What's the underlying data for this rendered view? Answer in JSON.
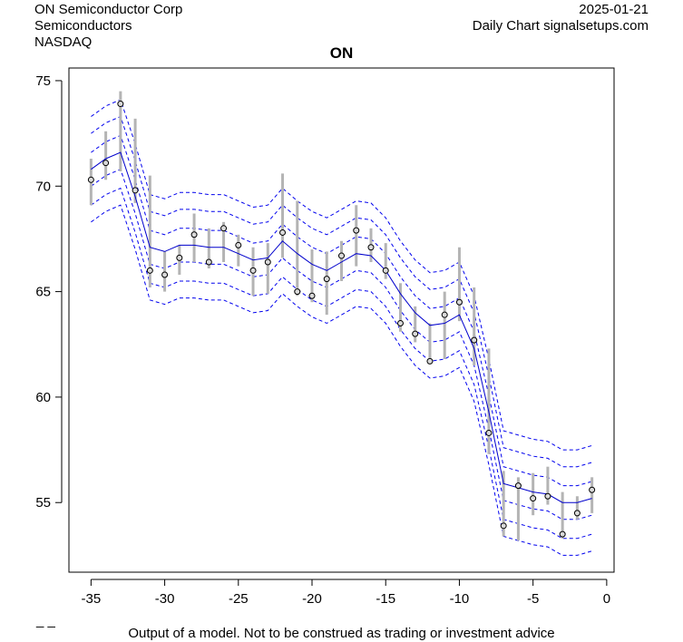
{
  "header": {
    "company": "ON Semiconductor Corp",
    "sector": "Semiconductors",
    "exchange": "NASDAQ",
    "date": "2025-01-21",
    "source": "Daily Chart signalsetups.com"
  },
  "footer": {
    "disclaimer": "Output of a model. Not to be construed as trading or investment advice",
    "marker": "_ _"
  },
  "colors": {
    "bar": "#b4b4b4",
    "model": "#0000cc",
    "band": "#0000ee"
  },
  "chart_data": {
    "type": "line",
    "title": "ON",
    "xlim": [
      -36.5,
      0.5
    ],
    "ylim": [
      51.7,
      75.6
    ],
    "x_ticks": [
      -35,
      -30,
      -25,
      -20,
      -15,
      -10,
      -5,
      0
    ],
    "y_ticks": [
      55,
      60,
      65,
      70,
      75
    ],
    "x": [
      -35,
      -34,
      -33,
      -32,
      -31,
      -30,
      -29,
      -28,
      -27,
      -26,
      -25,
      -24,
      -23,
      -22,
      -21,
      -20,
      -19,
      -18,
      -17,
      -16,
      -15,
      -14,
      -13,
      -12,
      -11,
      -10,
      -9,
      -8,
      -7,
      -6,
      -5,
      -4,
      -3,
      -2,
      -1
    ],
    "close": [
      70.3,
      71.1,
      73.9,
      69.8,
      66.0,
      65.8,
      66.6,
      67.7,
      66.4,
      68.0,
      67.2,
      66.0,
      66.4,
      67.8,
      65.0,
      64.8,
      65.6,
      66.7,
      67.9,
      67.1,
      66.0,
      63.5,
      63.0,
      61.7,
      63.9,
      64.5,
      62.7,
      58.3,
      53.9,
      55.8,
      55.2,
      55.3,
      53.5,
      54.5,
      55.6
    ],
    "high": [
      71.3,
      72.6,
      74.5,
      73.2,
      70.5,
      66.9,
      67.2,
      68.7,
      68.0,
      68.3,
      67.7,
      67.1,
      67.3,
      70.6,
      69.3,
      67.0,
      66.9,
      67.4,
      69.1,
      68.0,
      67.3,
      65.4,
      64.3,
      63.5,
      65.0,
      67.1,
      65.2,
      62.3,
      56.5,
      56.2,
      56.4,
      56.7,
      55.5,
      55.3,
      56.2
    ],
    "low": [
      69.1,
      70.3,
      70.7,
      69.2,
      65.2,
      65.0,
      65.8,
      66.4,
      66.1,
      66.4,
      66.2,
      64.8,
      64.9,
      66.6,
      64.8,
      64.5,
      63.9,
      65.5,
      66.2,
      66.4,
      65.6,
      63.1,
      62.6,
      61.6,
      61.8,
      63.6,
      61.5,
      57.3,
      53.4,
      53.2,
      54.4,
      54.9,
      53.3,
      54.2,
      54.5
    ],
    "model": [
      70.8,
      71.3,
      71.6,
      69.5,
      67.1,
      66.9,
      67.2,
      67.2,
      67.1,
      67.1,
      66.8,
      66.5,
      66.6,
      67.4,
      66.8,
      66.3,
      66.0,
      66.4,
      66.8,
      66.7,
      66.0,
      64.9,
      64.0,
      63.4,
      63.5,
      63.9,
      62.3,
      59.3,
      55.9,
      55.7,
      55.5,
      55.4,
      55.0,
      55.0,
      55.2
    ],
    "band_offsets": [
      -2.5,
      -1.7,
      -0.8,
      0.8,
      1.7,
      2.5
    ],
    "series": [
      {
        "name": "price range",
        "style": "vertical bars"
      },
      {
        "name": "close",
        "style": "points"
      },
      {
        "name": "model",
        "style": "solid line"
      },
      {
        "name": "bands",
        "style": "dashed lines"
      }
    ]
  }
}
